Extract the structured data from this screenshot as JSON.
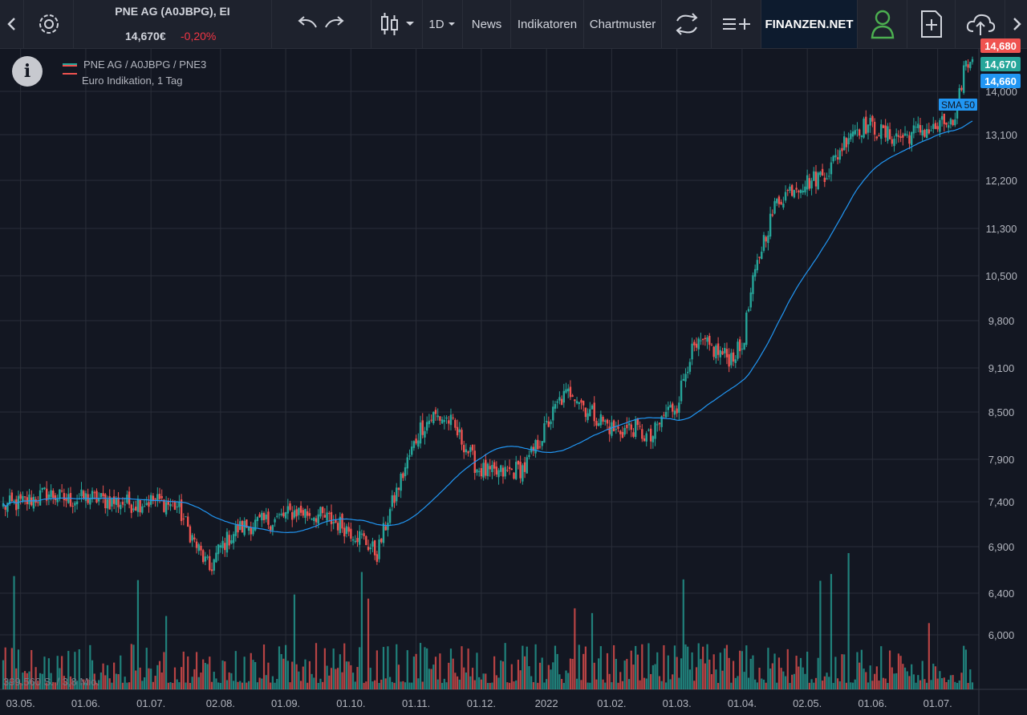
{
  "toolbar": {
    "symbol_title": "PNE AG (A0JBPG), EI",
    "price": "14,670€",
    "change": "-0,20%",
    "interval": "1D",
    "news_label": "News",
    "indicators_label": "Indikatoren",
    "patterns_label": "Chartmuster",
    "brand": "FINANZEN.NET",
    "icons": [
      "chevron-left-icon",
      "gear-icon",
      "undo-icon",
      "redo-icon",
      "candlestick-icon",
      "caret-down-icon",
      "compare-icon",
      "add-indicator-icon",
      "user-icon",
      "new-file-icon",
      "cloud-upload-icon",
      "chevron-right-icon"
    ]
  },
  "legend": {
    "line1": "PNE AG / A0JBPG / PNE3",
    "line2": "Euro Indikation, 1 Tag"
  },
  "volume_label": "399.560 S. / 3,8 Mio.",
  "colors": {
    "background": "#131722",
    "up": "#26a69a",
    "down": "#ef5350",
    "sma": "#2196f3",
    "grid": "#2a2e39"
  },
  "chart_data": {
    "type": "candlestick",
    "xlabel": "",
    "ylabel": "",
    "ylim": [
      5600,
      14800
    ],
    "y_ticks": [
      "14,000",
      "13,100",
      "12,200",
      "11,300",
      "10,500",
      "9,800",
      "9,100",
      "8,500",
      "7,900",
      "7,400",
      "6,900",
      "6,400",
      "6,000"
    ],
    "y_tick_values": [
      14000,
      13100,
      12200,
      11300,
      10500,
      9800,
      9100,
      8500,
      7900,
      7400,
      6900,
      6400,
      6000
    ],
    "x_ticks": [
      "03.05.",
      "01.06.",
      "01.07.",
      "02.08.",
      "01.09.",
      "01.10.",
      "01.11.",
      "01.12.",
      "2022",
      "01.02.",
      "01.03.",
      "01.04.",
      "02.05.",
      "01.06.",
      "01.07."
    ],
    "x_tick_index": [
      8,
      38,
      68,
      100,
      130,
      160,
      190,
      220,
      250,
      280,
      310,
      340,
      370,
      400,
      430
    ],
    "close_anchors": [
      [
        0,
        7350
      ],
      [
        10,
        7400
      ],
      [
        20,
        7500
      ],
      [
        30,
        7420
      ],
      [
        40,
        7450
      ],
      [
        50,
        7400
      ],
      [
        60,
        7380
      ],
      [
        70,
        7420
      ],
      [
        80,
        7350
      ],
      [
        88,
        6950
      ],
      [
        95,
        6650
      ],
      [
        100,
        6900
      ],
      [
        108,
        7100
      ],
      [
        115,
        7150
      ],
      [
        125,
        7200
      ],
      [
        135,
        7300
      ],
      [
        145,
        7250
      ],
      [
        155,
        7150
      ],
      [
        165,
        7000
      ],
      [
        172,
        6820
      ],
      [
        178,
        7300
      ],
      [
        185,
        7800
      ],
      [
        192,
        8300
      ],
      [
        198,
        8450
      ],
      [
        205,
        8400
      ],
      [
        212,
        8100
      ],
      [
        218,
        7800
      ],
      [
        225,
        7720
      ],
      [
        232,
        7750
      ],
      [
        240,
        7800
      ],
      [
        248,
        8200
      ],
      [
        256,
        8650
      ],
      [
        262,
        8800
      ],
      [
        268,
        8550
      ],
      [
        275,
        8400
      ],
      [
        282,
        8250
      ],
      [
        290,
        8300
      ],
      [
        298,
        8150
      ],
      [
        305,
        8500
      ],
      [
        310,
        8600
      ],
      [
        316,
        9300
      ],
      [
        322,
        9450
      ],
      [
        328,
        9350
      ],
      [
        334,
        9250
      ],
      [
        340,
        9400
      ],
      [
        344,
        10200
      ],
      [
        349,
        11000
      ],
      [
        356,
        11800
      ],
      [
        364,
        12100
      ],
      [
        372,
        12200
      ],
      [
        380,
        12400
      ],
      [
        390,
        13200
      ],
      [
        398,
        13300
      ],
      [
        406,
        13100
      ],
      [
        414,
        13050
      ],
      [
        422,
        13200
      ],
      [
        428,
        13200
      ],
      [
        434,
        13350
      ],
      [
        438,
        13250
      ],
      [
        442,
        14500
      ],
      [
        446,
        14670
      ]
    ],
    "sma_label": "SMA 50",
    "price_labels": [
      {
        "value": "14,680",
        "color": "#ef5350"
      },
      {
        "value": "14,670",
        "color": "#26a69a"
      },
      {
        "value": "14,660",
        "color": "#2196f3"
      }
    ],
    "n_bars": 447,
    "legend_position": "top-left"
  }
}
